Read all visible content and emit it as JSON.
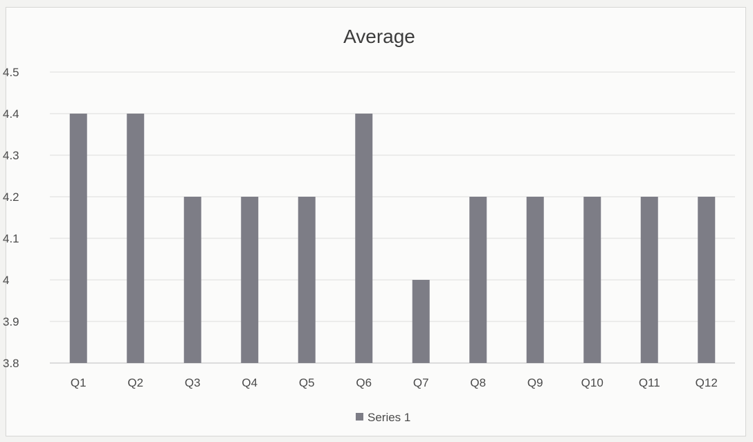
{
  "chart_data": {
    "type": "bar",
    "title": "Average",
    "xlabel": "",
    "ylabel": "",
    "categories": [
      "Q1",
      "Q2",
      "Q3",
      "Q4",
      "Q5",
      "Q6",
      "Q7",
      "Q8",
      "Q9",
      "Q10",
      "Q11",
      "Q12"
    ],
    "series": [
      {
        "name": "Series 1",
        "values": [
          4.4,
          4.4,
          4.2,
          4.2,
          4.2,
          4.4,
          4.0,
          4.2,
          4.2,
          4.2,
          4.2,
          4.2
        ],
        "color": "#7d7d86"
      }
    ],
    "ylim": [
      3.8,
      4.5
    ],
    "yticks": [
      3.8,
      3.9,
      4.0,
      4.1,
      4.2,
      4.3,
      4.4,
      4.5
    ],
    "ytick_labels": [
      "3.8",
      "3.9",
      "4",
      "4.1",
      "4.2",
      "4.3",
      "4.4",
      "4.5"
    ],
    "grid": true,
    "legend_position": "bottom"
  }
}
